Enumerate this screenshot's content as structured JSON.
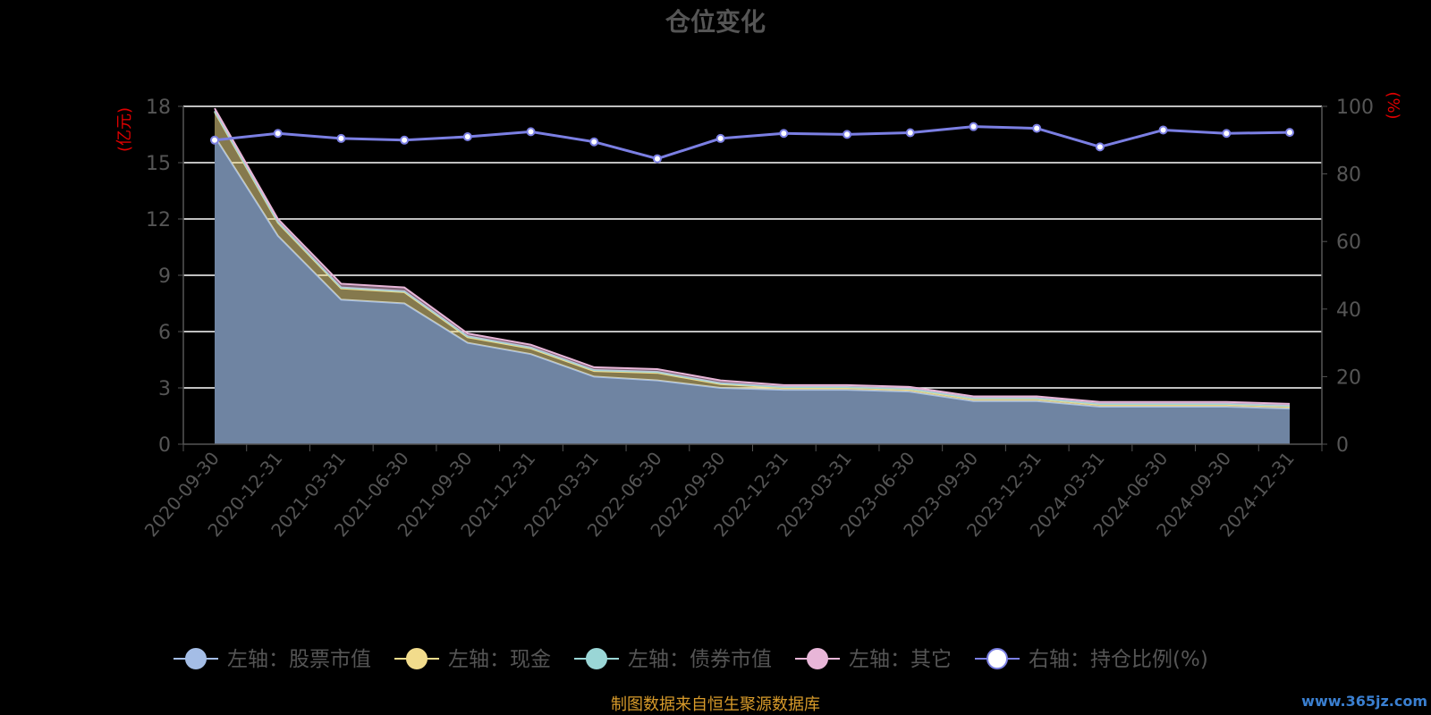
{
  "chart_data": {
    "type": "area",
    "title": "仓位变化",
    "categories": [
      "2020-09-30",
      "2020-12-31",
      "2021-03-31",
      "2021-06-30",
      "2021-09-30",
      "2021-12-31",
      "2022-03-31",
      "2022-06-30",
      "2022-09-30",
      "2022-12-31",
      "2023-03-31",
      "2023-06-30",
      "2023-09-30",
      "2023-12-31",
      "2024-03-31",
      "2024-06-30",
      "2024-09-30",
      "2024-12-31"
    ],
    "y_left": {
      "unit_label": "(亿元)",
      "ylim": [
        0,
        18
      ],
      "ticks": [
        0,
        3,
        6,
        9,
        12,
        15,
        18
      ]
    },
    "y_right": {
      "unit_label": "(%)",
      "ylim": [
        0,
        100
      ],
      "ticks": [
        0,
        20,
        40,
        60,
        80,
        100
      ]
    },
    "series": [
      {
        "name": "左轴：股票市值",
        "type": "area",
        "axis": "left",
        "color": "#a4bde6",
        "values": [
          16.4,
          11.1,
          7.7,
          7.5,
          5.4,
          4.8,
          3.6,
          3.4,
          3.0,
          2.9,
          2.9,
          2.8,
          2.3,
          2.3,
          2.0,
          2.0,
          2.0,
          1.9
        ]
      },
      {
        "name": "左轴：现金",
        "type": "area",
        "axis": "left",
        "color": "#f2dc8c",
        "values": [
          1.3,
          0.7,
          0.6,
          0.6,
          0.3,
          0.3,
          0.3,
          0.4,
          0.2,
          0.1,
          0.1,
          0.1,
          0.1,
          0.1,
          0.1,
          0.1,
          0.1,
          0.1
        ]
      },
      {
        "name": "左轴：债券市值",
        "type": "area",
        "axis": "left",
        "color": "#9ad6d6",
        "values": [
          0.05,
          0.05,
          0.05,
          0.05,
          0.05,
          0.05,
          0.05,
          0.05,
          0.05,
          0.05,
          0.05,
          0.05,
          0.05,
          0.05,
          0.05,
          0.05,
          0.05,
          0.05
        ]
      },
      {
        "name": "左轴：其它",
        "type": "area",
        "axis": "left",
        "color": "#e8b6d8",
        "values": [
          0.15,
          0.15,
          0.2,
          0.2,
          0.15,
          0.15,
          0.15,
          0.15,
          0.15,
          0.1,
          0.1,
          0.1,
          0.1,
          0.1,
          0.1,
          0.1,
          0.1,
          0.1
        ]
      },
      {
        "name": "右轴：持仓比例(%)",
        "type": "line",
        "axis": "right",
        "color": "#7b7fe3",
        "values": [
          90.0,
          92.0,
          90.5,
          90.0,
          91.0,
          92.5,
          89.5,
          84.5,
          90.5,
          92.0,
          91.7,
          92.2,
          94.0,
          93.5,
          88.0,
          93.0,
          92.0,
          92.3
        ]
      }
    ],
    "grid": true,
    "legend_position": "bottom"
  },
  "footer": {
    "source": "制图数据来自恒生聚源数据库",
    "watermark": "www.365jz.com"
  }
}
